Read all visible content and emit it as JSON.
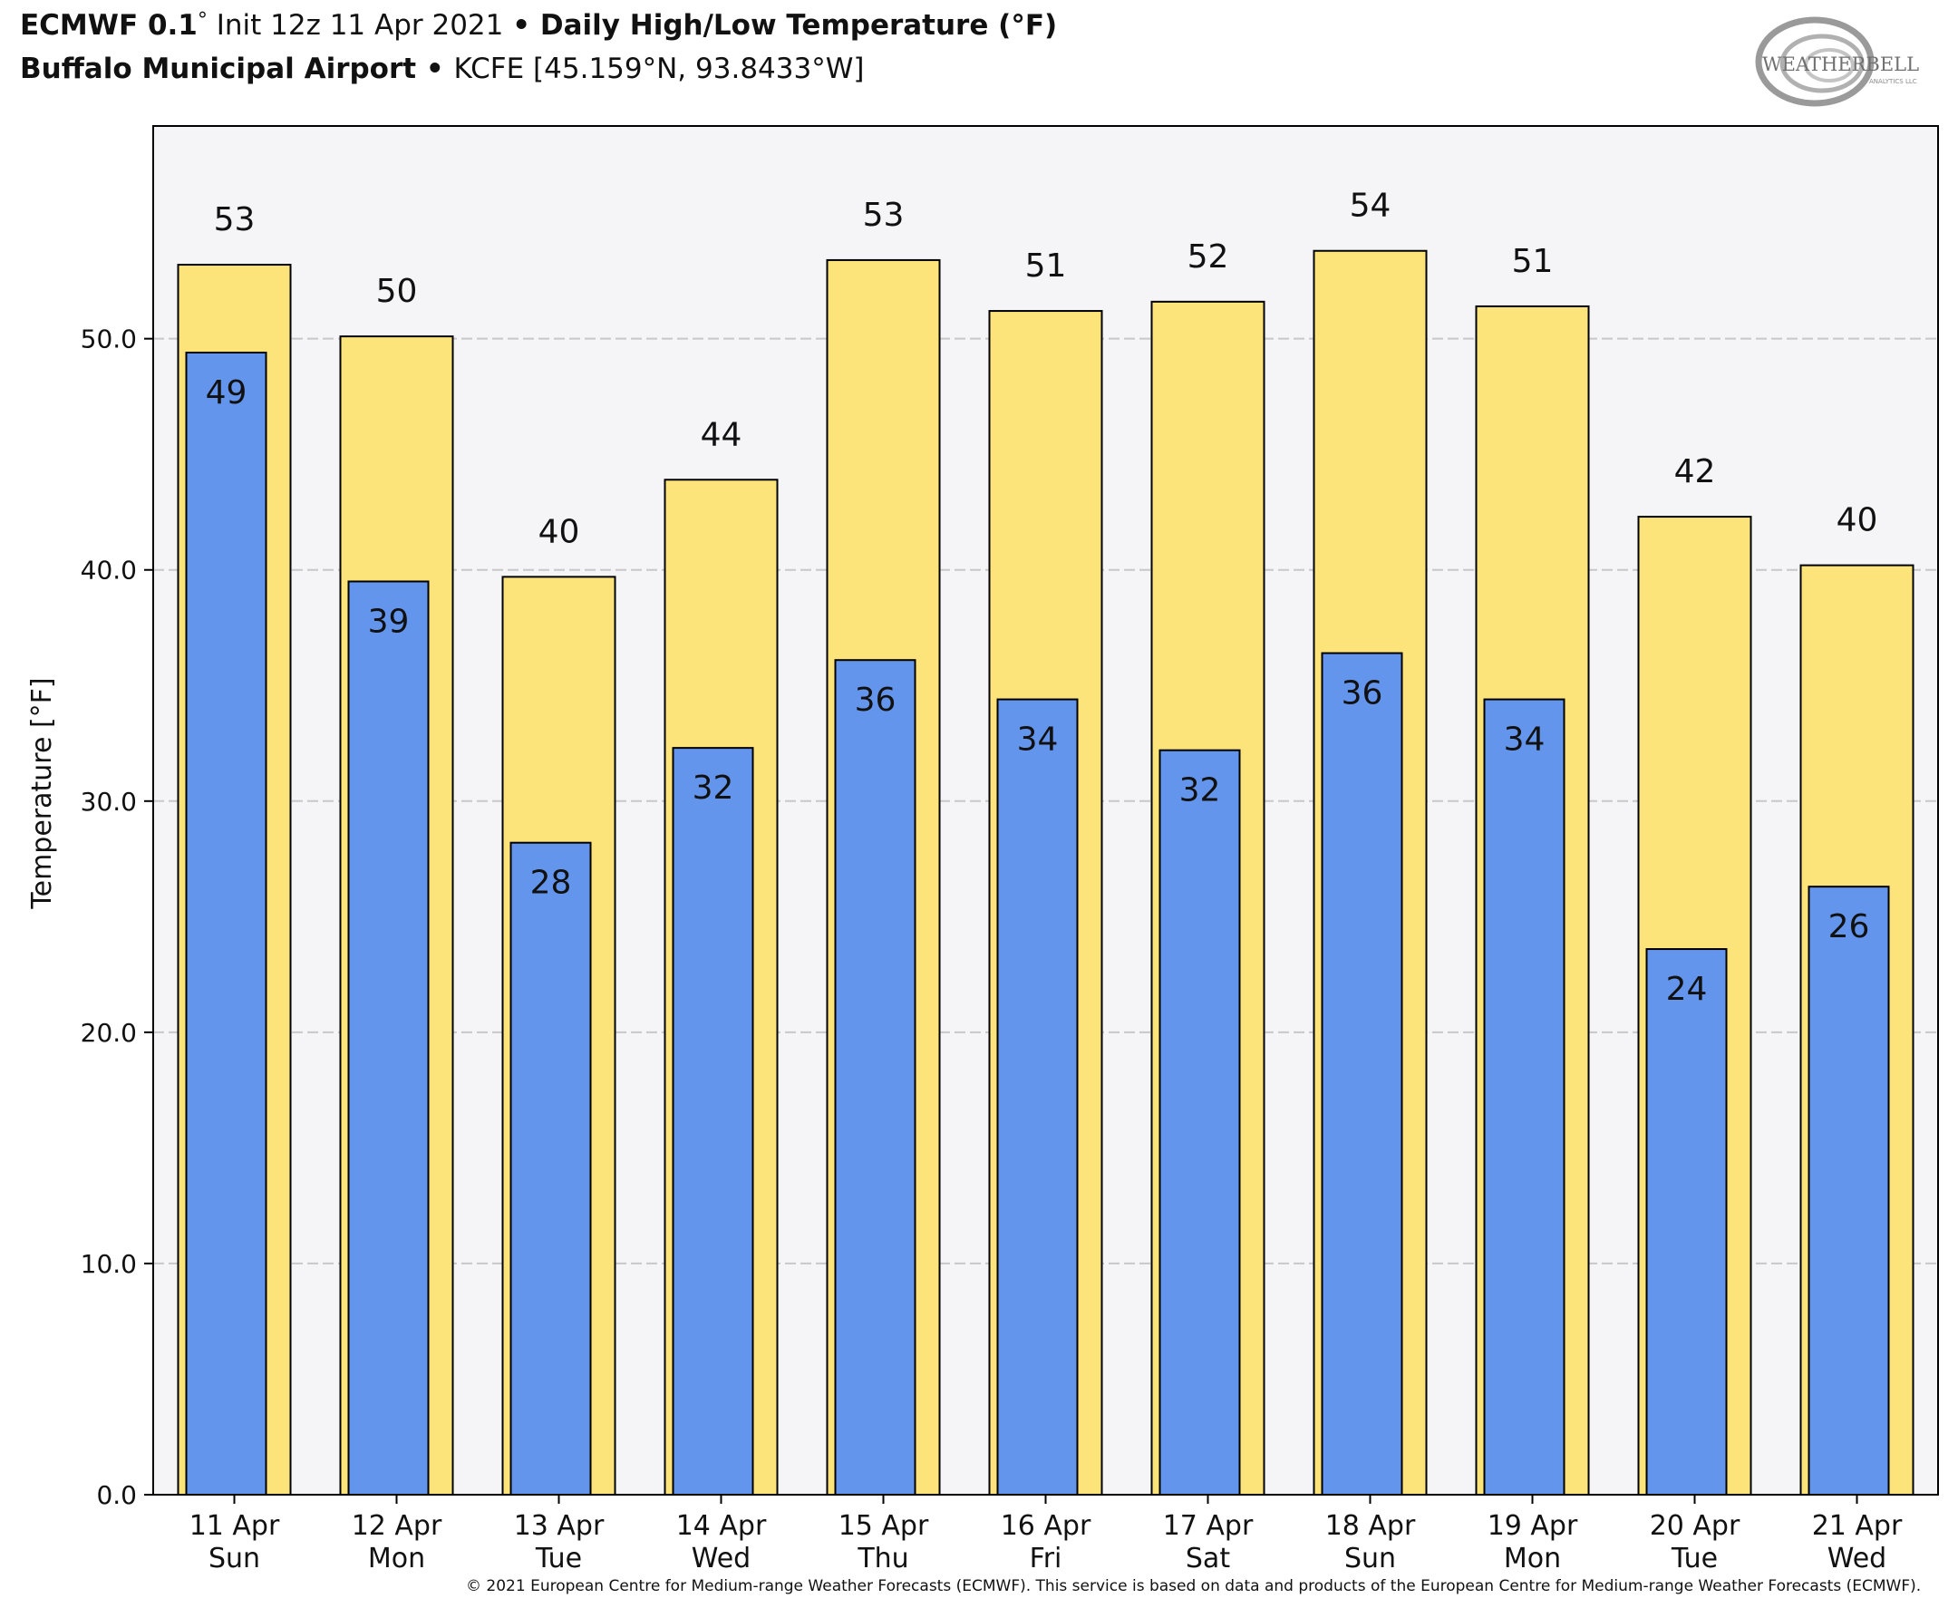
{
  "header": {
    "model": "ECMWF 0.1",
    "degree": "°",
    "init": " Init 12z 11 Apr 2021 ",
    "bullet": "•",
    "product": " Daily High/Low Temperature (°F)",
    "station": "Buffalo Municipal Airport",
    "bullet2": " • ",
    "station_info": "KCFE [45.159°N, 93.8433°W]"
  },
  "logo": {
    "text": "WEATHERBELL",
    "sub": "ANALYTICS LLC"
  },
  "footer": "© 2021 European Centre for Medium-range Weather Forecasts (ECMWF). This service is based on data and products of the European Centre for Medium-range Weather Forecasts (ECMWF).",
  "colors": {
    "high": "#fce47b",
    "low": "#6495ed",
    "plot_bg": "#f5f4f6",
    "grid": "#c8c8c8"
  },
  "chart_data": {
    "type": "bar",
    "ylabel": "Temperature [°F]",
    "ylim": [
      0,
      59.2
    ],
    "yticks": [
      0,
      10,
      20,
      30,
      40,
      50
    ],
    "ytick_labels": [
      "0.0",
      "10.0",
      "20.0",
      "30.0",
      "40.0",
      "50.0"
    ],
    "grid": true,
    "categories": [
      [
        "11 Apr",
        "Sun"
      ],
      [
        "12 Apr",
        "Mon"
      ],
      [
        "13 Apr",
        "Tue"
      ],
      [
        "14 Apr",
        "Wed"
      ],
      [
        "15 Apr",
        "Thu"
      ],
      [
        "16 Apr",
        "Fri"
      ],
      [
        "17 Apr",
        "Sat"
      ],
      [
        "18 Apr",
        "Sun"
      ],
      [
        "19 Apr",
        "Mon"
      ],
      [
        "20 Apr",
        "Tue"
      ],
      [
        "21 Apr",
        "Wed"
      ]
    ],
    "series": [
      {
        "values": [
          53.2,
          50.1,
          39.7,
          43.9,
          53.4,
          51.2,
          51.6,
          53.8,
          51.4,
          42.3,
          40.2
        ],
        "labels": [
          "53",
          "50",
          "40",
          "44",
          "53",
          "51",
          "52",
          "54",
          "51",
          "42",
          "40"
        ]
      },
      {
        "values": [
          49.4,
          39.5,
          28.2,
          32.3,
          36.1,
          34.4,
          32.2,
          36.4,
          34.4,
          23.6,
          26.3
        ],
        "labels": [
          "49",
          "39",
          "28",
          "32",
          "36",
          "34",
          "32",
          "36",
          "34",
          "24",
          "26"
        ]
      }
    ]
  }
}
